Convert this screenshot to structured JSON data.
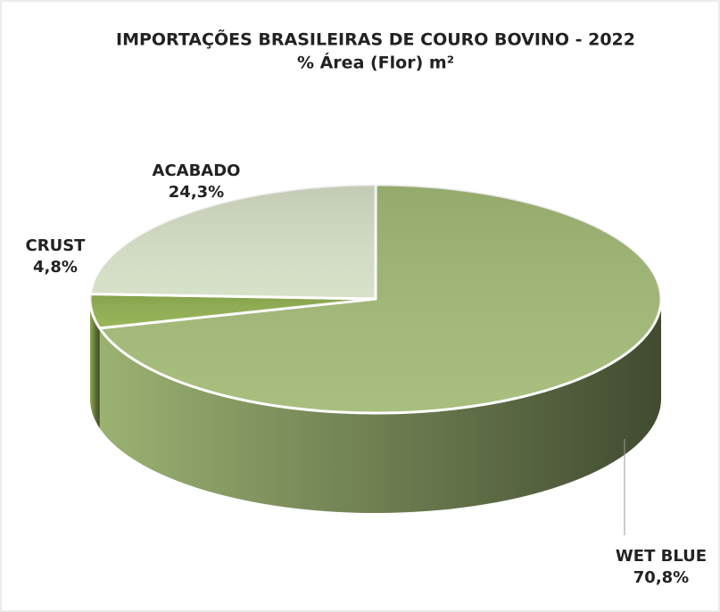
{
  "chart_data": {
    "type": "pie",
    "title": "IMPORTAÇÕES BRASILEIRAS DE COURO BOVINO - 2022",
    "subtitle": "% Área (Flor) m²",
    "categories": [
      "WET BLUE",
      "CRUST",
      "ACABADO"
    ],
    "values": [
      70.8,
      4.8,
      24.3
    ],
    "value_labels": [
      "70,8%",
      "4,8%",
      "24,3%"
    ],
    "colors": [
      "#a3bb78",
      "#93b152",
      "#d6dfc6"
    ]
  }
}
